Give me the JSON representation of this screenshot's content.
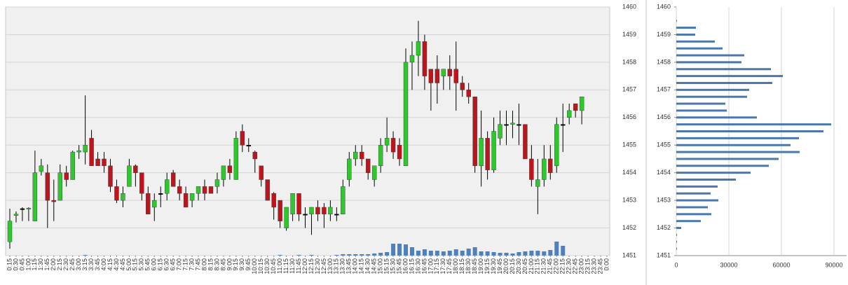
{
  "chart_data": [
    {
      "type": "candlestick",
      "categories": [
        "0:15",
        "0:30",
        "0:45",
        "1:00",
        "1:15",
        "1:30",
        "1:45",
        "2:00",
        "2:15",
        "2:30",
        "2:45",
        "3:00",
        "3:15",
        "3:30",
        "3:45",
        "4:00",
        "4:15",
        "4:30",
        "4:45",
        "5:00",
        "5:15",
        "5:30",
        "5:45",
        "6:00",
        "6:15",
        "6:30",
        "6:45",
        "7:00",
        "7:15",
        "7:30",
        "7:45",
        "8:00",
        "8:15",
        "8:30",
        "8:45",
        "9:00",
        "9:15",
        "9:30",
        "9:45",
        "10:00",
        "10:15",
        "10:30",
        "10:45",
        "11:00",
        "11:15",
        "11:30",
        "11:45",
        "12:00",
        "12:15",
        "12:30",
        "12:45",
        "13:00",
        "13:15",
        "13:30",
        "13:45",
        "14:00",
        "14:15",
        "14:30",
        "14:45",
        "15:00",
        "15:15",
        "15:30",
        "15:45",
        "16:00",
        "16:15",
        "16:30",
        "16:45",
        "17:00",
        "17:15",
        "17:30",
        "17:45",
        "18:00",
        "18:15",
        "18:30",
        "18:45",
        "19:00",
        "19:15",
        "19:30",
        "19:45",
        "20:00",
        "20:15",
        "20:30",
        "20:45",
        "21:00",
        "21:15",
        "21:30",
        "21:45",
        "22:00",
        "22:15",
        "22:30",
        "22:45",
        "23:00",
        "23:15",
        "23:30",
        "23:45",
        "0:00"
      ],
      "open": [
        1451.5,
        1452.45,
        1452.7,
        1452.7,
        1452.25,
        1454.05,
        1454.0,
        1453.0,
        1453.0,
        1454.0,
        1453.75,
        1454.75,
        1454.75,
        1455.25,
        1454.5,
        1454.5,
        1454.25,
        1453.5,
        1453.0,
        1453.5,
        1454.25,
        1454.0,
        1453.25,
        1452.75,
        1453.25,
        1453.25,
        1454.0,
        1453.5,
        1453.25,
        1453.0,
        1453.25,
        1453.5,
        1453.5,
        1453.5,
        1453.75,
        1454.25,
        1453.75,
        1455.5,
        1455.0,
        1454.75,
        1454.25,
        1453.75,
        1453.25,
        1453.0,
        1452.0,
        1452.5,
        1453.25,
        1452.5,
        1452.5,
        1452.75,
        1452.75,
        1452.5,
        1452.5,
        1452.5,
        1453.75,
        1454.5,
        1454.75,
        1454.5,
        1453.75,
        1454.25,
        1455.0,
        1455.25,
        1455.0,
        1454.25,
        1458.0,
        1458.25,
        1458.75,
        1457.75,
        1457.75,
        1457.5,
        1457.75,
        1457.75,
        1457.25,
        1457.0,
        1456.75,
        1454.25,
        1455.25,
        1454.1,
        1455.25,
        1455.75,
        1455.75,
        1455.75,
        1455.75,
        1454.5,
        1453.5,
        1453.75,
        1454.5,
        1454.25,
        1455.75,
        1456.0,
        1456.5,
        1456.25,
        null,
        null,
        null,
        null
      ],
      "high": [
        1452.7,
        1452.6,
        1452.75,
        1452.75,
        1454.8,
        1454.5,
        1454.3,
        1453.75,
        1454.3,
        1454.25,
        1454.8,
        1455.0,
        1456.8,
        1455.55,
        1454.75,
        1454.75,
        1454.5,
        1453.75,
        1453.5,
        1454.5,
        1454.3,
        1454.0,
        1453.5,
        1453.25,
        1453.5,
        1454.0,
        1454.1,
        1453.75,
        1453.5,
        1453.25,
        1453.5,
        1453.75,
        1453.5,
        1454.0,
        1454.25,
        1454.5,
        1455.5,
        1455.75,
        1455.25,
        1454.8,
        1454.25,
        1453.75,
        1453.3,
        1453.0,
        1452.75,
        1453.25,
        1453.25,
        1452.75,
        1452.75,
        1453.0,
        1452.9,
        1453.0,
        1452.75,
        1453.75,
        1454.75,
        1455.0,
        1455.0,
        1454.5,
        1454.25,
        1455.25,
        1456.0,
        1455.5,
        1455.25,
        1458.5,
        1458.75,
        1459.5,
        1459.0,
        1457.75,
        1458.25,
        1457.75,
        1458.25,
        1458.75,
        1457.5,
        1457.25,
        1456.75,
        1456.25,
        1455.5,
        1456.0,
        1456.25,
        1456.25,
        1456.25,
        1456.5,
        1455.75,
        1455.0,
        1454.5,
        1455.0,
        1455.0,
        1456.0,
        1456.5,
        1456.5,
        1456.5,
        1456.75,
        null,
        null,
        null,
        null
      ],
      "low": [
        1451.25,
        1452.2,
        1452.25,
        1452.25,
        1452.25,
        1453.9,
        1452.0,
        1452.25,
        1453.0,
        1453.5,
        1453.75,
        1454.5,
        1454.3,
        1454.25,
        1454.25,
        1454.0,
        1453.3,
        1452.9,
        1452.75,
        1453.5,
        1453.5,
        1453.0,
        1452.5,
        1452.25,
        1452.75,
        1453.0,
        1453.5,
        1453.0,
        1452.75,
        1452.75,
        1453.0,
        1453.0,
        1453.25,
        1453.25,
        1453.5,
        1453.75,
        1453.75,
        1454.75,
        1454.75,
        1454.0,
        1453.5,
        1453.0,
        1452.3,
        1452.0,
        1451.9,
        1452.25,
        1452.25,
        1452.0,
        1451.75,
        1452.25,
        1452.0,
        1452.25,
        1452.25,
        1452.5,
        1453.5,
        1454.25,
        1454.25,
        1453.75,
        1453.5,
        1454.0,
        1454.75,
        1454.5,
        1454.25,
        1454.25,
        1457.0,
        1457.5,
        1457.0,
        1456.25,
        1456.5,
        1457.0,
        1457.0,
        1456.25,
        1456.75,
        1456.5,
        1454.0,
        1453.5,
        1453.75,
        1454.0,
        1455.0,
        1455.0,
        1455.25,
        1455.0,
        1454.5,
        1453.5,
        1452.5,
        1453.5,
        1453.75,
        1454.0,
        1454.75,
        1455.75,
        1456.0,
        1455.75,
        null,
        null,
        null,
        null
      ],
      "close": [
        1452.25,
        1452.5,
        1452.7,
        1452.72,
        1454.0,
        1454.25,
        1453.0,
        1452.95,
        1454.0,
        1453.75,
        1454.75,
        1454.8,
        1455.0,
        1454.25,
        1454.25,
        1454.25,
        1453.5,
        1453.0,
        1453.25,
        1454.25,
        1454.0,
        1453.25,
        1452.5,
        1453.0,
        1453.25,
        1453.75,
        1453.5,
        1453.25,
        1452.75,
        1453.25,
        1453.5,
        1453.25,
        1453.25,
        1453.75,
        1454.25,
        1454.0,
        1455.25,
        1455.0,
        1455.0,
        1454.5,
        1453.75,
        1453.0,
        1452.75,
        1452.25,
        1452.75,
        1453.25,
        1452.5,
        1452.5,
        1452.75,
        1452.5,
        1452.5,
        1452.75,
        1452.5,
        1453.5,
        1454.5,
        1454.75,
        1454.5,
        1454.0,
        1454.25,
        1455.0,
        1455.25,
        1454.75,
        1454.5,
        1458.0,
        1458.25,
        1458.75,
        1457.5,
        1457.25,
        1457.25,
        1457.75,
        1457.5,
        1457.25,
        1457.0,
        1456.75,
        1454.25,
        1455.25,
        1454.1,
        1455.5,
        1455.75,
        1455.75,
        1455.8,
        1455.75,
        1454.5,
        1453.75,
        1453.75,
        1454.5,
        1454.0,
        1455.75,
        1455.75,
        1456.25,
        1456.25,
        1456.75,
        null,
        null,
        null,
        null
      ],
      "volume": [
        0,
        0,
        0,
        0,
        0,
        0,
        0,
        0,
        0,
        0,
        0,
        0,
        1,
        0,
        0,
        0,
        0,
        0,
        0,
        0,
        0,
        0,
        0,
        0,
        0,
        0,
        0,
        0,
        0,
        0,
        0,
        0,
        0,
        0,
        0,
        0,
        0,
        0,
        0,
        0,
        0,
        0,
        0,
        1,
        0,
        0,
        1,
        0,
        1,
        0,
        0,
        0,
        1,
        2,
        2,
        2,
        2,
        2,
        3,
        4,
        5,
        17,
        17,
        16,
        12,
        7,
        9,
        7,
        7,
        6,
        7,
        9,
        7,
        10,
        12,
        6,
        6,
        5,
        4,
        4,
        3,
        5,
        6,
        7,
        7,
        6,
        8,
        20,
        14,
        null,
        null,
        null,
        null,
        null,
        null,
        null
      ],
      "ylim": [
        1451,
        1460
      ],
      "yticks": [
        1451,
        1452,
        1453,
        1454,
        1455,
        1456,
        1457,
        1458,
        1459,
        1460
      ],
      "grid": true,
      "up_color": "#2ec82e",
      "down_color": "#c0141c",
      "volume_color": "#4f81bd"
    },
    {
      "type": "hbar",
      "y": [
        1451.25,
        1451.5,
        1451.75,
        1452.0,
        1452.25,
        1452.5,
        1452.75,
        1453.0,
        1453.25,
        1453.5,
        1453.75,
        1454.0,
        1454.25,
        1454.5,
        1454.75,
        1455.0,
        1455.25,
        1455.5,
        1455.75,
        1456.0,
        1456.25,
        1456.5,
        1456.75,
        1457.0,
        1457.25,
        1457.5,
        1457.75,
        1458.0,
        1458.25,
        1458.5,
        1458.75,
        1459.0,
        1459.25,
        1459.5
      ],
      "values": [
        400,
        400,
        400,
        2800,
        14000,
        20000,
        18000,
        24000,
        19600,
        23600,
        34000,
        42400,
        52800,
        58400,
        70400,
        65200,
        70000,
        84000,
        88400,
        46000,
        28800,
        28000,
        40400,
        41600,
        54800,
        60800,
        54000,
        37200,
        38800,
        26400,
        22000,
        10800,
        11200,
        400
      ],
      "xlim": [
        0,
        90000
      ],
      "xticks": [
        0,
        30000,
        60000,
        90000
      ],
      "ylim": [
        1451,
        1460
      ],
      "yticks": [
        1451,
        1452,
        1453,
        1454,
        1455,
        1456,
        1457,
        1458,
        1459,
        1460
      ],
      "grid": true,
      "color": "#4a78ad"
    }
  ]
}
